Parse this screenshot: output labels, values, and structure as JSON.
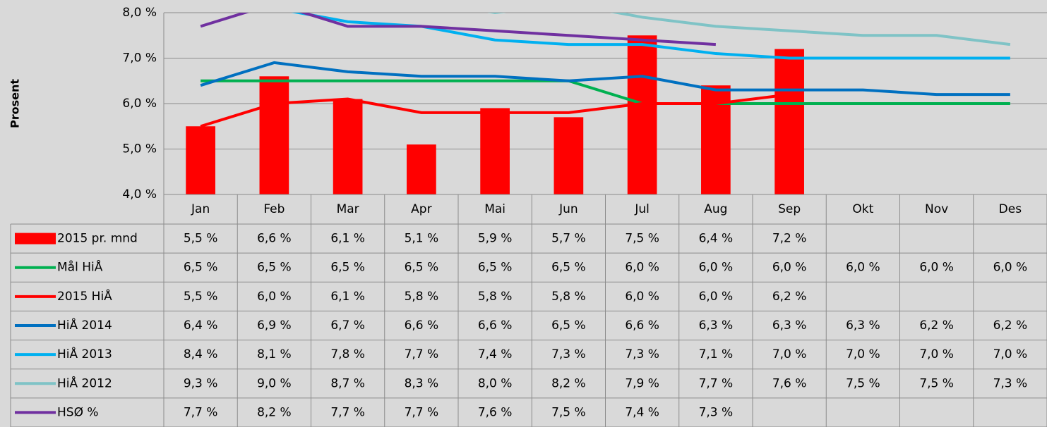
{
  "chart_data": {
    "type": "bar",
    "y_label": "Prosent",
    "categories": [
      "Jan",
      "Feb",
      "Mar",
      "Apr",
      "Mai",
      "Jun",
      "Jul",
      "Aug",
      "Sep",
      "Okt",
      "Nov",
      "Des"
    ],
    "ylim": [
      4.0,
      8.0
    ],
    "yticks": [
      {
        "value": 4.0,
        "label": "4,0 %"
      },
      {
        "value": 5.0,
        "label": "5,0 %"
      },
      {
        "value": 6.0,
        "label": "6,0 %"
      },
      {
        "value": 7.0,
        "label": "7,0 %"
      },
      {
        "value": 8.0,
        "label": "8,0 %"
      }
    ],
    "grid": true,
    "series": [
      {
        "name": "2015 pr. mnd",
        "type": "bar",
        "color": "#ff0000",
        "values": [
          5.5,
          6.6,
          6.1,
          5.1,
          5.9,
          5.7,
          7.5,
          6.4,
          7.2,
          null,
          null,
          null
        ],
        "value_labels": [
          "5,5 %",
          "6,6 %",
          "6,1 %",
          "5,1 %",
          "5,9 %",
          "5,7 %",
          "7,5 %",
          "6,4 %",
          "7,2 %",
          null,
          null,
          null
        ]
      },
      {
        "name": "Mål HiÅ",
        "type": "line",
        "color": "#00b050",
        "values": [
          6.5,
          6.5,
          6.5,
          6.5,
          6.5,
          6.5,
          6.0,
          6.0,
          6.0,
          6.0,
          6.0,
          6.0
        ],
        "value_labels": [
          "6,5 %",
          "6,5 %",
          "6,5 %",
          "6,5 %",
          "6,5 %",
          "6,5 %",
          "6,0 %",
          "6,0 %",
          "6,0 %",
          "6,0 %",
          "6,0 %",
          "6,0 %"
        ]
      },
      {
        "name": "2015 HiÅ",
        "type": "line",
        "color": "#ff0000",
        "values": [
          5.5,
          6.0,
          6.1,
          5.8,
          5.8,
          5.8,
          6.0,
          6.0,
          6.2,
          null,
          null,
          null
        ],
        "value_labels": [
          "5,5 %",
          "6,0 %",
          "6,1 %",
          "5,8 %",
          "5,8 %",
          "5,8 %",
          "6,0 %",
          "6,0 %",
          "6,2 %",
          null,
          null,
          null
        ]
      },
      {
        "name": "HiÅ 2014",
        "type": "line",
        "color": "#0070c0",
        "values": [
          6.4,
          6.9,
          6.7,
          6.6,
          6.6,
          6.5,
          6.6,
          6.3,
          6.3,
          6.3,
          6.2,
          6.2
        ],
        "value_labels": [
          "6,4 %",
          "6,9 %",
          "6,7 %",
          "6,6 %",
          "6,6 %",
          "6,5 %",
          "6,6 %",
          "6,3 %",
          "6,3 %",
          "6,3 %",
          "6,2 %",
          "6,2 %"
        ]
      },
      {
        "name": "HiÅ 2013",
        "type": "line",
        "color": "#00b0f0",
        "values": [
          8.4,
          8.1,
          7.8,
          7.7,
          7.4,
          7.3,
          7.3,
          7.1,
          7.0,
          7.0,
          7.0,
          7.0
        ],
        "value_labels": [
          "8,4 %",
          "8,1 %",
          "7,8 %",
          "7,7 %",
          "7,4 %",
          "7,3 %",
          "7,3 %",
          "7,1 %",
          "7,0 %",
          "7,0 %",
          "7,0 %",
          "7,0 %"
        ]
      },
      {
        "name": "HiÅ 2012",
        "type": "line",
        "color": "#7fc3c6",
        "values": [
          9.3,
          9.0,
          8.7,
          8.3,
          8.0,
          8.2,
          7.9,
          7.7,
          7.6,
          7.5,
          7.5,
          7.3
        ],
        "value_labels": [
          "9,3 %",
          "9,0 %",
          "8,7 %",
          "8,3 %",
          "8,0 %",
          "8,2 %",
          "7,9 %",
          "7,7 %",
          "7,6 %",
          "7,5 %",
          "7,5 %",
          "7,3 %"
        ]
      },
      {
        "name": "HSØ  %",
        "type": "line",
        "color": "#7030a0",
        "values": [
          7.7,
          8.2,
          7.7,
          7.7,
          7.6,
          7.5,
          7.4,
          7.3,
          null,
          null,
          null,
          null
        ],
        "value_labels": [
          "7,7 %",
          "8,2 %",
          "7,7 %",
          "7,7 %",
          "7,6 %",
          "7,5 %",
          "7,4 %",
          "7,3 %",
          null,
          null,
          null,
          null
        ]
      }
    ]
  }
}
